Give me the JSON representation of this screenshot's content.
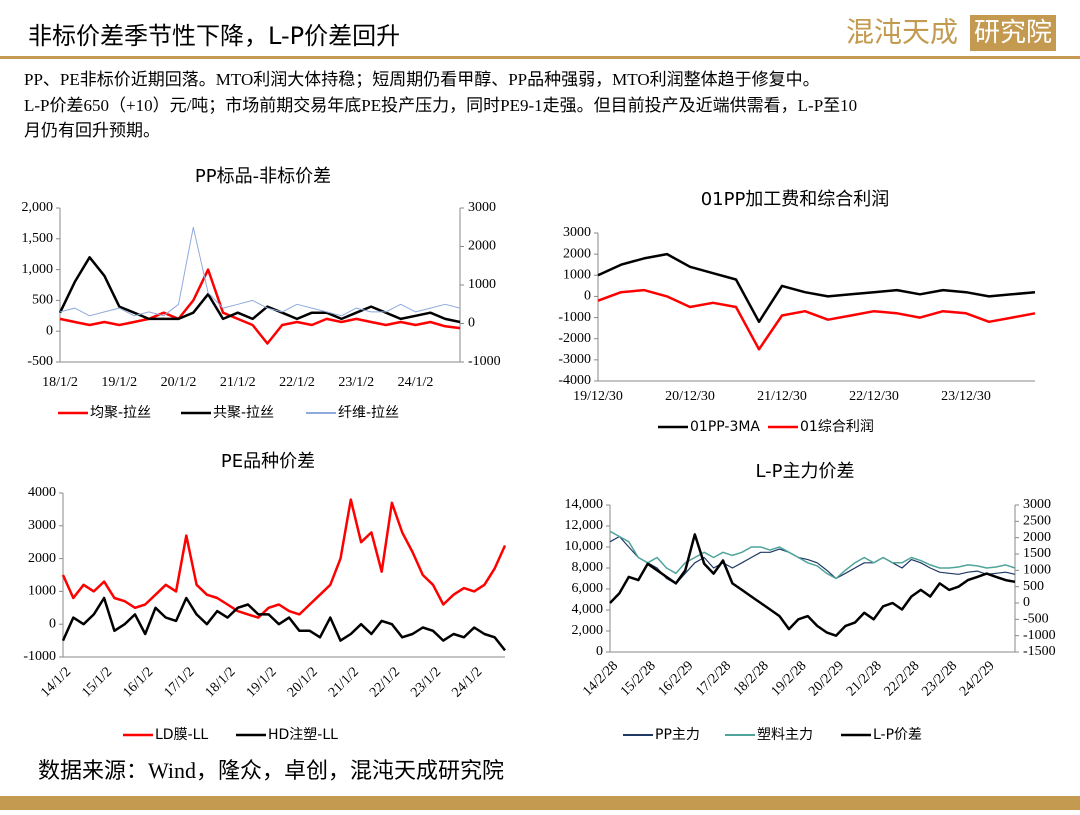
{
  "header": {
    "title": "非标价差季节性下降，L-P价差回升",
    "logo_main": "混沌天成",
    "logo_box": "研究院"
  },
  "body": {
    "lines": [
      "PP、PE非标价近期回落。MTO利润大体持稳；短周期仍看甲醇、PP品种强弱，MTO利润整体趋于修复中。",
      "L-P价差650（+10）元/吨；市场前期交易年底PE投产压力，同时PE9-1走强。但目前投产及近端供需看，L-P至10",
      "月仍有回升预期。"
    ]
  },
  "footer": {
    "source": "数据来源：Wind，隆众，卓创，混沌天成研究院"
  },
  "chart_data": [
    {
      "type": "line",
      "title": "PP标品-非标价差",
      "categories": [
        "18/1/2",
        null,
        null,
        null,
        "19/1/2",
        null,
        null,
        null,
        "20/1/2",
        null,
        null,
        null,
        "21/1/2",
        null,
        null,
        null,
        "22/1/2",
        null,
        null,
        null,
        "23/1/2",
        null,
        null,
        null,
        "24/1/2",
        null,
        null,
        null
      ],
      "ylim": [
        -500,
        2000
      ],
      "yticks": [
        {
          "value": 2000,
          "label": "2,000"
        },
        {
          "value": 1500,
          "label": "1,500"
        },
        {
          "value": 1000,
          "label": "1,000"
        },
        500,
        0,
        -500
      ],
      "y2lim": [
        -1000,
        3000
      ],
      "y2ticks": [
        3000,
        2000,
        1000,
        0,
        -1000
      ],
      "series": [
        {
          "name": "均聚-拉丝",
          "color": "#ff0000",
          "values": [
            200,
            150,
            100,
            150,
            100,
            150,
            200,
            300,
            200,
            500,
            1000,
            300,
            200,
            100,
            -200,
            100,
            150,
            100,
            200,
            150,
            200,
            150,
            100,
            150,
            100,
            150,
            80,
            50
          ]
        },
        {
          "name": "共聚-拉丝",
          "color": "#000000",
          "values": [
            300,
            800,
            1200,
            900,
            400,
            300,
            200,
            200,
            200,
            300,
            600,
            200,
            300,
            200,
            400,
            300,
            200,
            300,
            300,
            200,
            300,
            400,
            300,
            200,
            250,
            300,
            200,
            150
          ]
        },
        {
          "name": "纤维-拉丝",
          "color": "#8faadc",
          "axis": "y2",
          "values": [
            300,
            400,
            200,
            300,
            400,
            200,
            300,
            200,
            500,
            2500,
            800,
            400,
            500,
            600,
            400,
            300,
            500,
            400,
            300,
            200,
            400,
            300,
            300,
            500,
            300,
            400,
            500,
            400
          ]
        }
      ]
    },
    {
      "type": "line",
      "title": "01PP加工费和综合利润",
      "categories": [
        "19/12/30",
        null,
        null,
        null,
        "20/12/30",
        null,
        null,
        null,
        "21/12/30",
        null,
        null,
        null,
        "22/12/30",
        null,
        null,
        null,
        "23/12/30",
        null,
        null,
        null
      ],
      "ylim": [
        -4000,
        3000
      ],
      "yticks": [
        3000,
        2000,
        1000,
        0,
        -1000,
        -2000,
        -3000,
        -4000
      ],
      "series": [
        {
          "name": "01PP-3MA",
          "color": "#000000",
          "values": [
            1000,
            1500,
            1800,
            2000,
            1400,
            1100,
            800,
            -1200,
            500,
            200,
            0,
            100,
            200,
            300,
            100,
            300,
            200,
            0,
            100,
            200
          ]
        },
        {
          "name": "01综合利润",
          "color": "#ff0000",
          "values": [
            -200,
            200,
            300,
            0,
            -500,
            -300,
            -500,
            -2500,
            -900,
            -700,
            -1100,
            -900,
            -700,
            -800,
            -1000,
            -700,
            -800,
            -1200,
            -1000,
            -800
          ]
        }
      ]
    },
    {
      "type": "line",
      "title": "PE品种价差",
      "categories": [
        "14/1/2",
        null,
        null,
        null,
        "15/1/2",
        null,
        null,
        null,
        "16/1/2",
        null,
        null,
        null,
        "17/1/2",
        null,
        null,
        null,
        "18/1/2",
        null,
        null,
        null,
        "19/1/2",
        null,
        null,
        null,
        "20/1/2",
        null,
        null,
        null,
        "21/1/2",
        null,
        null,
        null,
        "22/1/2",
        null,
        null,
        null,
        "23/1/2",
        null,
        null,
        null,
        "24/1/2",
        null,
        null,
        null
      ],
      "ylim": [
        -1000,
        4000
      ],
      "yticks": [
        4000,
        3000,
        2000,
        1000,
        0,
        -1000
      ],
      "series": [
        {
          "name": "LD膜-LL",
          "color": "#ff0000",
          "values": [
            1500,
            800,
            1200,
            1000,
            1300,
            800,
            700,
            500,
            600,
            900,
            1200,
            1000,
            2700,
            1200,
            900,
            800,
            600,
            400,
            300,
            200,
            500,
            600,
            400,
            300,
            600,
            900,
            1200,
            2000,
            3800,
            2500,
            2800,
            1600,
            3700,
            2800,
            2200,
            1500,
            1200,
            600,
            900,
            1100,
            1000,
            1200,
            1700,
            2400
          ]
        },
        {
          "name": "HD注塑-LL",
          "color": "#000000",
          "values": [
            -500,
            200,
            0,
            300,
            800,
            -200,
            0,
            300,
            -300,
            500,
            200,
            100,
            800,
            300,
            0,
            400,
            200,
            500,
            600,
            300,
            300,
            0,
            200,
            -200,
            -200,
            -400,
            200,
            -500,
            -300,
            0,
            -300,
            100,
            0,
            -400,
            -300,
            -100,
            -200,
            -500,
            -300,
            -400,
            -100,
            -300,
            -400,
            -800
          ]
        }
      ]
    },
    {
      "type": "line",
      "title": "L-P主力价差",
      "categories": [
        "14/2/28",
        null,
        null,
        null,
        "15/2/28",
        null,
        null,
        null,
        "16/2/29",
        null,
        null,
        null,
        "17/2/28",
        null,
        null,
        null,
        "18/2/28",
        null,
        null,
        null,
        "19/2/28",
        null,
        null,
        null,
        "20/2/29",
        null,
        null,
        null,
        "21/2/28",
        null,
        null,
        null,
        "22/2/28",
        null,
        null,
        null,
        "23/2/28",
        null,
        null,
        null,
        "24/2/29",
        null,
        null,
        null
      ],
      "ylim": [
        0,
        14000
      ],
      "yticks": [
        {
          "value": 14000,
          "label": "14,000"
        },
        {
          "value": 12000,
          "label": "12,000"
        },
        {
          "value": 10000,
          "label": "10,000"
        },
        {
          "value": 8000,
          "label": "8,000"
        },
        {
          "value": 6000,
          "label": "6,000"
        },
        {
          "value": 4000,
          "label": "4,000"
        },
        {
          "value": 2000,
          "label": "2,000"
        },
        0
      ],
      "y2lim": [
        -1500,
        3000
      ],
      "y2ticks": [
        3000,
        2500,
        2000,
        1500,
        1000,
        500,
        0,
        -500,
        -1000,
        -1500
      ],
      "series": [
        {
          "name": "PP主力",
          "color": "#1f3864",
          "values": [
            10500,
            11000,
            10000,
            9000,
            8500,
            8000,
            7000,
            6500,
            7500,
            8500,
            9000,
            8000,
            8500,
            8000,
            8500,
            9000,
            9500,
            9500,
            9800,
            9500,
            9000,
            8800,
            8500,
            7800,
            7000,
            7500,
            8000,
            8500,
            8500,
            9000,
            8500,
            8000,
            8800,
            8500,
            8000,
            7600,
            7500,
            7400,
            7600,
            7700,
            7400,
            7500,
            7600,
            7400
          ]
        },
        {
          "name": "塑料主力",
          "color": "#4fa59a",
          "values": [
            11500,
            11000,
            10500,
            9000,
            8500,
            9000,
            8000,
            7500,
            8500,
            9000,
            9500,
            9000,
            9500,
            9200,
            9500,
            10000,
            10000,
            9700,
            10000,
            9500,
            9000,
            8500,
            8200,
            7500,
            7000,
            7800,
            8500,
            9000,
            8500,
            9000,
            8500,
            8500,
            9000,
            8700,
            8300,
            8000,
            8000,
            8100,
            8300,
            8200,
            8000,
            8100,
            8300,
            8000
          ]
        },
        {
          "name": "L-P价差",
          "color": "#000000",
          "axis": "y2",
          "values": [
            0,
            300,
            800,
            700,
            1200,
            1000,
            800,
            600,
            1000,
            2100,
            1200,
            900,
            1300,
            600,
            400,
            200,
            0,
            -200,
            -400,
            -800,
            -500,
            -400,
            -700,
            -900,
            -1000,
            -700,
            -600,
            -300,
            -500,
            -100,
            0,
            -200,
            200,
            400,
            200,
            600,
            400,
            500,
            700,
            800,
            900,
            800,
            700,
            650
          ]
        }
      ]
    }
  ]
}
